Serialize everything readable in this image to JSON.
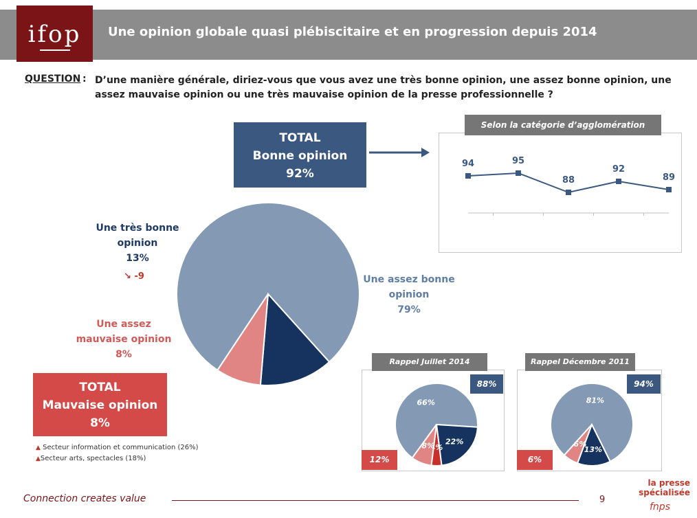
{
  "header": {
    "logo_text": "ifop",
    "title": "Une opinion globale quasi plébiscitaire et en progression depuis 2014"
  },
  "question": {
    "label": "QUESTION",
    "colon": ":",
    "text": "D’une manière générale, diriez-vous que vous avez une très bonne opinion, une assez bonne opinion, une assez mauvaise opinion ou une très mauvaise opinion de la presse professionnelle ?"
  },
  "total_good": {
    "line1": "TOTAL",
    "line2": "Bonne opinion",
    "line3": "92%"
  },
  "total_bad": {
    "line1": "TOTAL",
    "line2": "Mauvaise opinion",
    "line3": "8%"
  },
  "pie_labels": {
    "tres_bonne": {
      "line1": "Une très bonne",
      "line2": "opinion",
      "value": "13%",
      "trend": "-9"
    },
    "assez_bonne": {
      "line1": "Une assez bonne",
      "line2": "opinion",
      "value": "79%"
    },
    "assez_mauvaise": {
      "line1": "Une assez",
      "line2": "mauvaise opinion",
      "value": "8%"
    }
  },
  "sectors": [
    "Secteur information et communication (26%)",
    "Secteur arts, spectacles (18%)"
  ],
  "agglo": {
    "title": "Selon la catégorie d’agglomération"
  },
  "recall_2014": {
    "title": "Rappel Juillet 2014",
    "good": "88%",
    "bad": "12%"
  },
  "recall_2011": {
    "title": "Rappel Décembre 2011",
    "good": "94%",
    "bad": "6%"
  },
  "footer": {
    "tagline": "Connection creates value",
    "page": "9",
    "brand_line1": "la presse",
    "brand_line2": "spécialisée",
    "brand_line3": "fnps"
  },
  "colors": {
    "assez_bonne": "#8499b3",
    "tres_bonne": "#16325e",
    "assez_mauvaise": "#e08583",
    "tres_mauvaise": "#c9302c",
    "line": "#3b5880"
  },
  "chart_data": [
    {
      "type": "pie",
      "title": "",
      "slices": [
        {
          "name": "Une assez bonne opinion",
          "value": 79
        },
        {
          "name": "Une très bonne opinion",
          "value": 13
        },
        {
          "name": "Une assez mauvaise opinion",
          "value": 8
        }
      ]
    },
    {
      "type": "line",
      "title": "Selon la catégorie d’agglomération",
      "x": [
        "",
        "",
        "",
        "",
        ""
      ],
      "series": [
        {
          "name": "",
          "values": [
            94,
            95,
            88,
            92,
            89
          ]
        }
      ],
      "ylim": [
        80,
        100
      ],
      "grid": false
    },
    {
      "type": "pie",
      "title": "Rappel Juillet 2014",
      "slices": [
        {
          "name": "Une assez bonne opinion",
          "value": 66,
          "label": "66%"
        },
        {
          "name": "Une très bonne opinion",
          "value": 22,
          "label": "22%"
        },
        {
          "name": "Une très mauvaise opinion",
          "value": 4,
          "label": "4%"
        },
        {
          "name": "Une assez mauvaise opinion",
          "value": 8,
          "label": "8%"
        }
      ]
    },
    {
      "type": "pie",
      "title": "Rappel Décembre 2011",
      "slices": [
        {
          "name": "Une assez bonne opinion",
          "value": 81,
          "label": "81%"
        },
        {
          "name": "Une très bonne opinion",
          "value": 13,
          "label": "13%"
        },
        {
          "name": "Une assez mauvaise opinion",
          "value": 6,
          "label": "6%"
        }
      ]
    }
  ]
}
